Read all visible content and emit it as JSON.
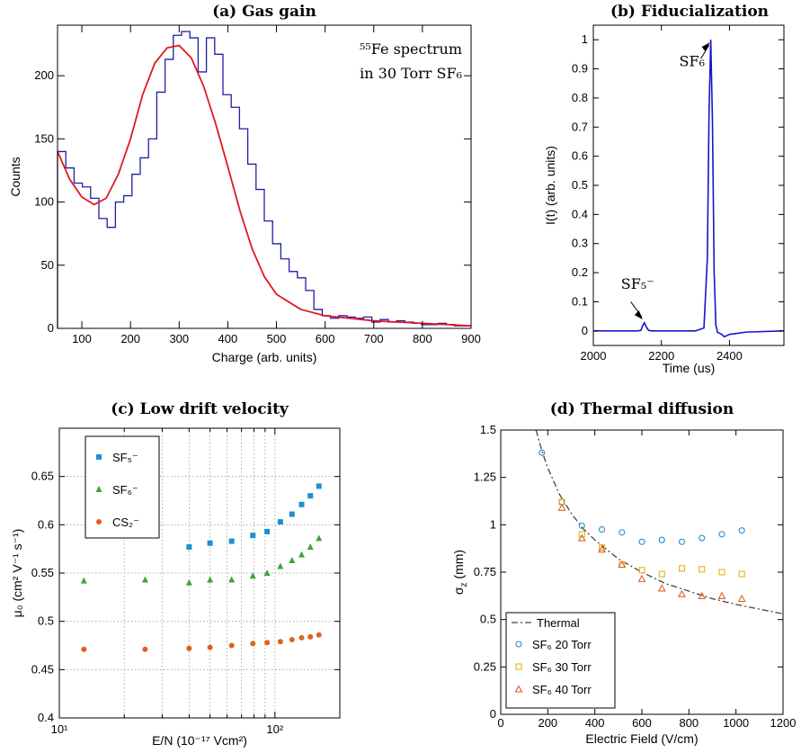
{
  "chart_data": [
    {
      "panel": "a",
      "type": "line",
      "title": "(a) Gas gain",
      "annotation_lines": [
        "⁵⁵Fe spectrum",
        "in 30 Torr SF₆"
      ],
      "xlabel": "Charge (arb. units)",
      "ylabel": "Counts",
      "xlim": [
        50,
        900
      ],
      "ylim": [
        0,
        240
      ],
      "xticks": [
        100,
        200,
        300,
        400,
        500,
        600,
        700,
        800,
        900
      ],
      "yticks": [
        0,
        50,
        100,
        150,
        200
      ],
      "colors": {
        "histogram": "#1f1fa8",
        "fit": "#e0191e"
      },
      "histogram": {
        "bin_width": 17,
        "bin_start": 50,
        "counts": [
          140,
          127,
          115,
          112,
          103,
          87,
          80,
          100,
          105,
          122,
          135,
          150,
          187,
          213,
          232,
          235,
          230,
          203,
          230,
          217,
          185,
          175,
          158,
          130,
          110,
          85,
          67,
          55,
          45,
          40,
          30,
          15,
          10,
          8,
          10,
          9,
          8,
          9,
          5,
          7,
          5,
          6,
          5,
          4,
          3,
          3,
          4,
          3,
          2,
          2
        ]
      },
      "fit": {
        "x": [
          50,
          75,
          100,
          125,
          150,
          175,
          200,
          225,
          250,
          275,
          300,
          325,
          350,
          375,
          400,
          425,
          450,
          475,
          500,
          550,
          600,
          650,
          700,
          750,
          800,
          850,
          900
        ],
        "y": [
          140,
          118,
          104,
          98,
          103,
          122,
          150,
          185,
          210,
          222,
          224,
          214,
          192,
          162,
          128,
          93,
          63,
          41,
          27,
          15,
          10,
          8,
          6,
          5,
          4,
          3,
          2
        ]
      }
    },
    {
      "panel": "b",
      "type": "line",
      "title": "(b) Fiducialization",
      "xlabel": "Time (us)",
      "ylabel": "I(t) (arb. units)",
      "xlim": [
        2000,
        2560
      ],
      "ylim": [
        -0.05,
        1.05
      ],
      "xticks": [
        2000,
        2200,
        2400
      ],
      "yticks": [
        0,
        0.1,
        0.2,
        0.3,
        0.4,
        0.5,
        0.6,
        0.7,
        0.8,
        0.9,
        1
      ],
      "color": "#1515c8",
      "annotations": [
        {
          "label": "SF₆",
          "x": 2345,
          "y": 1.0
        },
        {
          "label": "SF₅⁻",
          "x": 2150,
          "y": 0.03
        }
      ],
      "series": {
        "x": [
          2000,
          2130,
          2140,
          2145,
          2150,
          2155,
          2162,
          2170,
          2300,
          2325,
          2335,
          2340,
          2345,
          2350,
          2355,
          2360,
          2365,
          2375,
          2385,
          2400,
          2450,
          2560
        ],
        "y": [
          0,
          0,
          0.002,
          0.018,
          0.028,
          0.015,
          0.002,
          0,
          0,
          0.01,
          0.25,
          0.75,
          1.0,
          0.72,
          0.2,
          0.02,
          -0.005,
          -0.01,
          -0.02,
          -0.012,
          -0.004,
          0
        ]
      }
    },
    {
      "panel": "c",
      "type": "scatter",
      "title": "(c) Low drift velocity",
      "xlabel": "E/N (10⁻¹⁷ Vcm²)",
      "ylabel": "μ₀ (cm² V⁻¹ s⁻¹)",
      "xscale": "log",
      "xlim": [
        10,
        200
      ],
      "ylim": [
        0.4,
        0.7
      ],
      "xtick_labels": [
        "10¹",
        "10²"
      ],
      "yticks": [
        0.4,
        0.45,
        0.5,
        0.55,
        0.6,
        0.65
      ],
      "legend": "top-left",
      "grid": true,
      "series": [
        {
          "name": "SF₅⁻",
          "marker": "square",
          "color": "#1f8ed1",
          "x": [
            40,
            50,
            63,
            79,
            92,
            106,
            120,
            133,
            146,
            160
          ],
          "y": [
            0.577,
            0.581,
            0.583,
            0.589,
            0.593,
            0.603,
            0.611,
            0.621,
            0.63,
            0.64
          ]
        },
        {
          "name": "SF₆⁻",
          "marker": "triangle",
          "color": "#3aa63a",
          "x": [
            13,
            25,
            40,
            50,
            63,
            79,
            92,
            106,
            120,
            133,
            146,
            160
          ],
          "y": [
            0.542,
            0.543,
            0.54,
            0.543,
            0.543,
            0.547,
            0.55,
            0.557,
            0.563,
            0.569,
            0.577,
            0.586
          ]
        },
        {
          "name": "CS₂⁻",
          "marker": "circle",
          "color": "#e0601f",
          "x": [
            13,
            25,
            40,
            50,
            63,
            79,
            92,
            106,
            120,
            133,
            146,
            160
          ],
          "y": [
            0.471,
            0.471,
            0.472,
            0.473,
            0.475,
            0.477,
            0.478,
            0.479,
            0.481,
            0.483,
            0.484,
            0.486
          ]
        }
      ]
    },
    {
      "panel": "d",
      "type": "scatter",
      "title": "(d) Thermal diffusion",
      "xlabel": "Electric Field (V/cm)",
      "ylabel": "σz (mm)",
      "xlim": [
        0,
        1200
      ],
      "ylim": [
        0,
        1.5
      ],
      "xticks": [
        0,
        200,
        400,
        600,
        800,
        1000,
        1200
      ],
      "yticks": [
        0,
        0.25,
        0.5,
        0.75,
        1,
        1.25,
        1.5
      ],
      "ytick_labels": [
        "0",
        "0.25",
        "0.5",
        "0.75",
        "1",
        "1.25",
        "1.5"
      ],
      "legend": "bottom-left",
      "thermal": {
        "name": "Thermal",
        "color": "#444444",
        "x": [
          150,
          175,
          200,
          250,
          300,
          350,
          400,
          500,
          600,
          700,
          800,
          900,
          1000,
          1100,
          1200
        ],
        "y": [
          1.5,
          1.39,
          1.3,
          1.16,
          1.06,
          0.98,
          0.92,
          0.82,
          0.75,
          0.69,
          0.65,
          0.61,
          0.58,
          0.555,
          0.53
        ]
      },
      "series": [
        {
          "name": "SF₆ 20 Torr",
          "marker": "circle",
          "color": "#1f8ed1",
          "x": [
            175,
            260,
            345,
            430,
            515,
            600,
            685,
            770,
            855,
            940,
            1025
          ],
          "y": [
            1.38,
            1.12,
            0.995,
            0.975,
            0.96,
            0.91,
            0.92,
            0.91,
            0.93,
            0.95,
            0.97
          ]
        },
        {
          "name": "SF₆ 30 Torr",
          "marker": "square",
          "color": "#e8b020",
          "x": [
            260,
            345,
            430,
            515,
            600,
            685,
            770,
            855,
            940,
            1025
          ],
          "y": [
            1.12,
            0.95,
            0.88,
            0.79,
            0.76,
            0.74,
            0.77,
            0.765,
            0.75,
            0.74
          ]
        },
        {
          "name": "SF₆ 40 Torr",
          "marker": "triangle",
          "color": "#e0601f",
          "x": [
            260,
            345,
            430,
            515,
            600,
            685,
            770,
            855,
            940,
            1025
          ],
          "y": [
            1.09,
            0.93,
            0.87,
            0.79,
            0.715,
            0.665,
            0.635,
            0.625,
            0.625,
            0.61
          ]
        }
      ]
    }
  ]
}
